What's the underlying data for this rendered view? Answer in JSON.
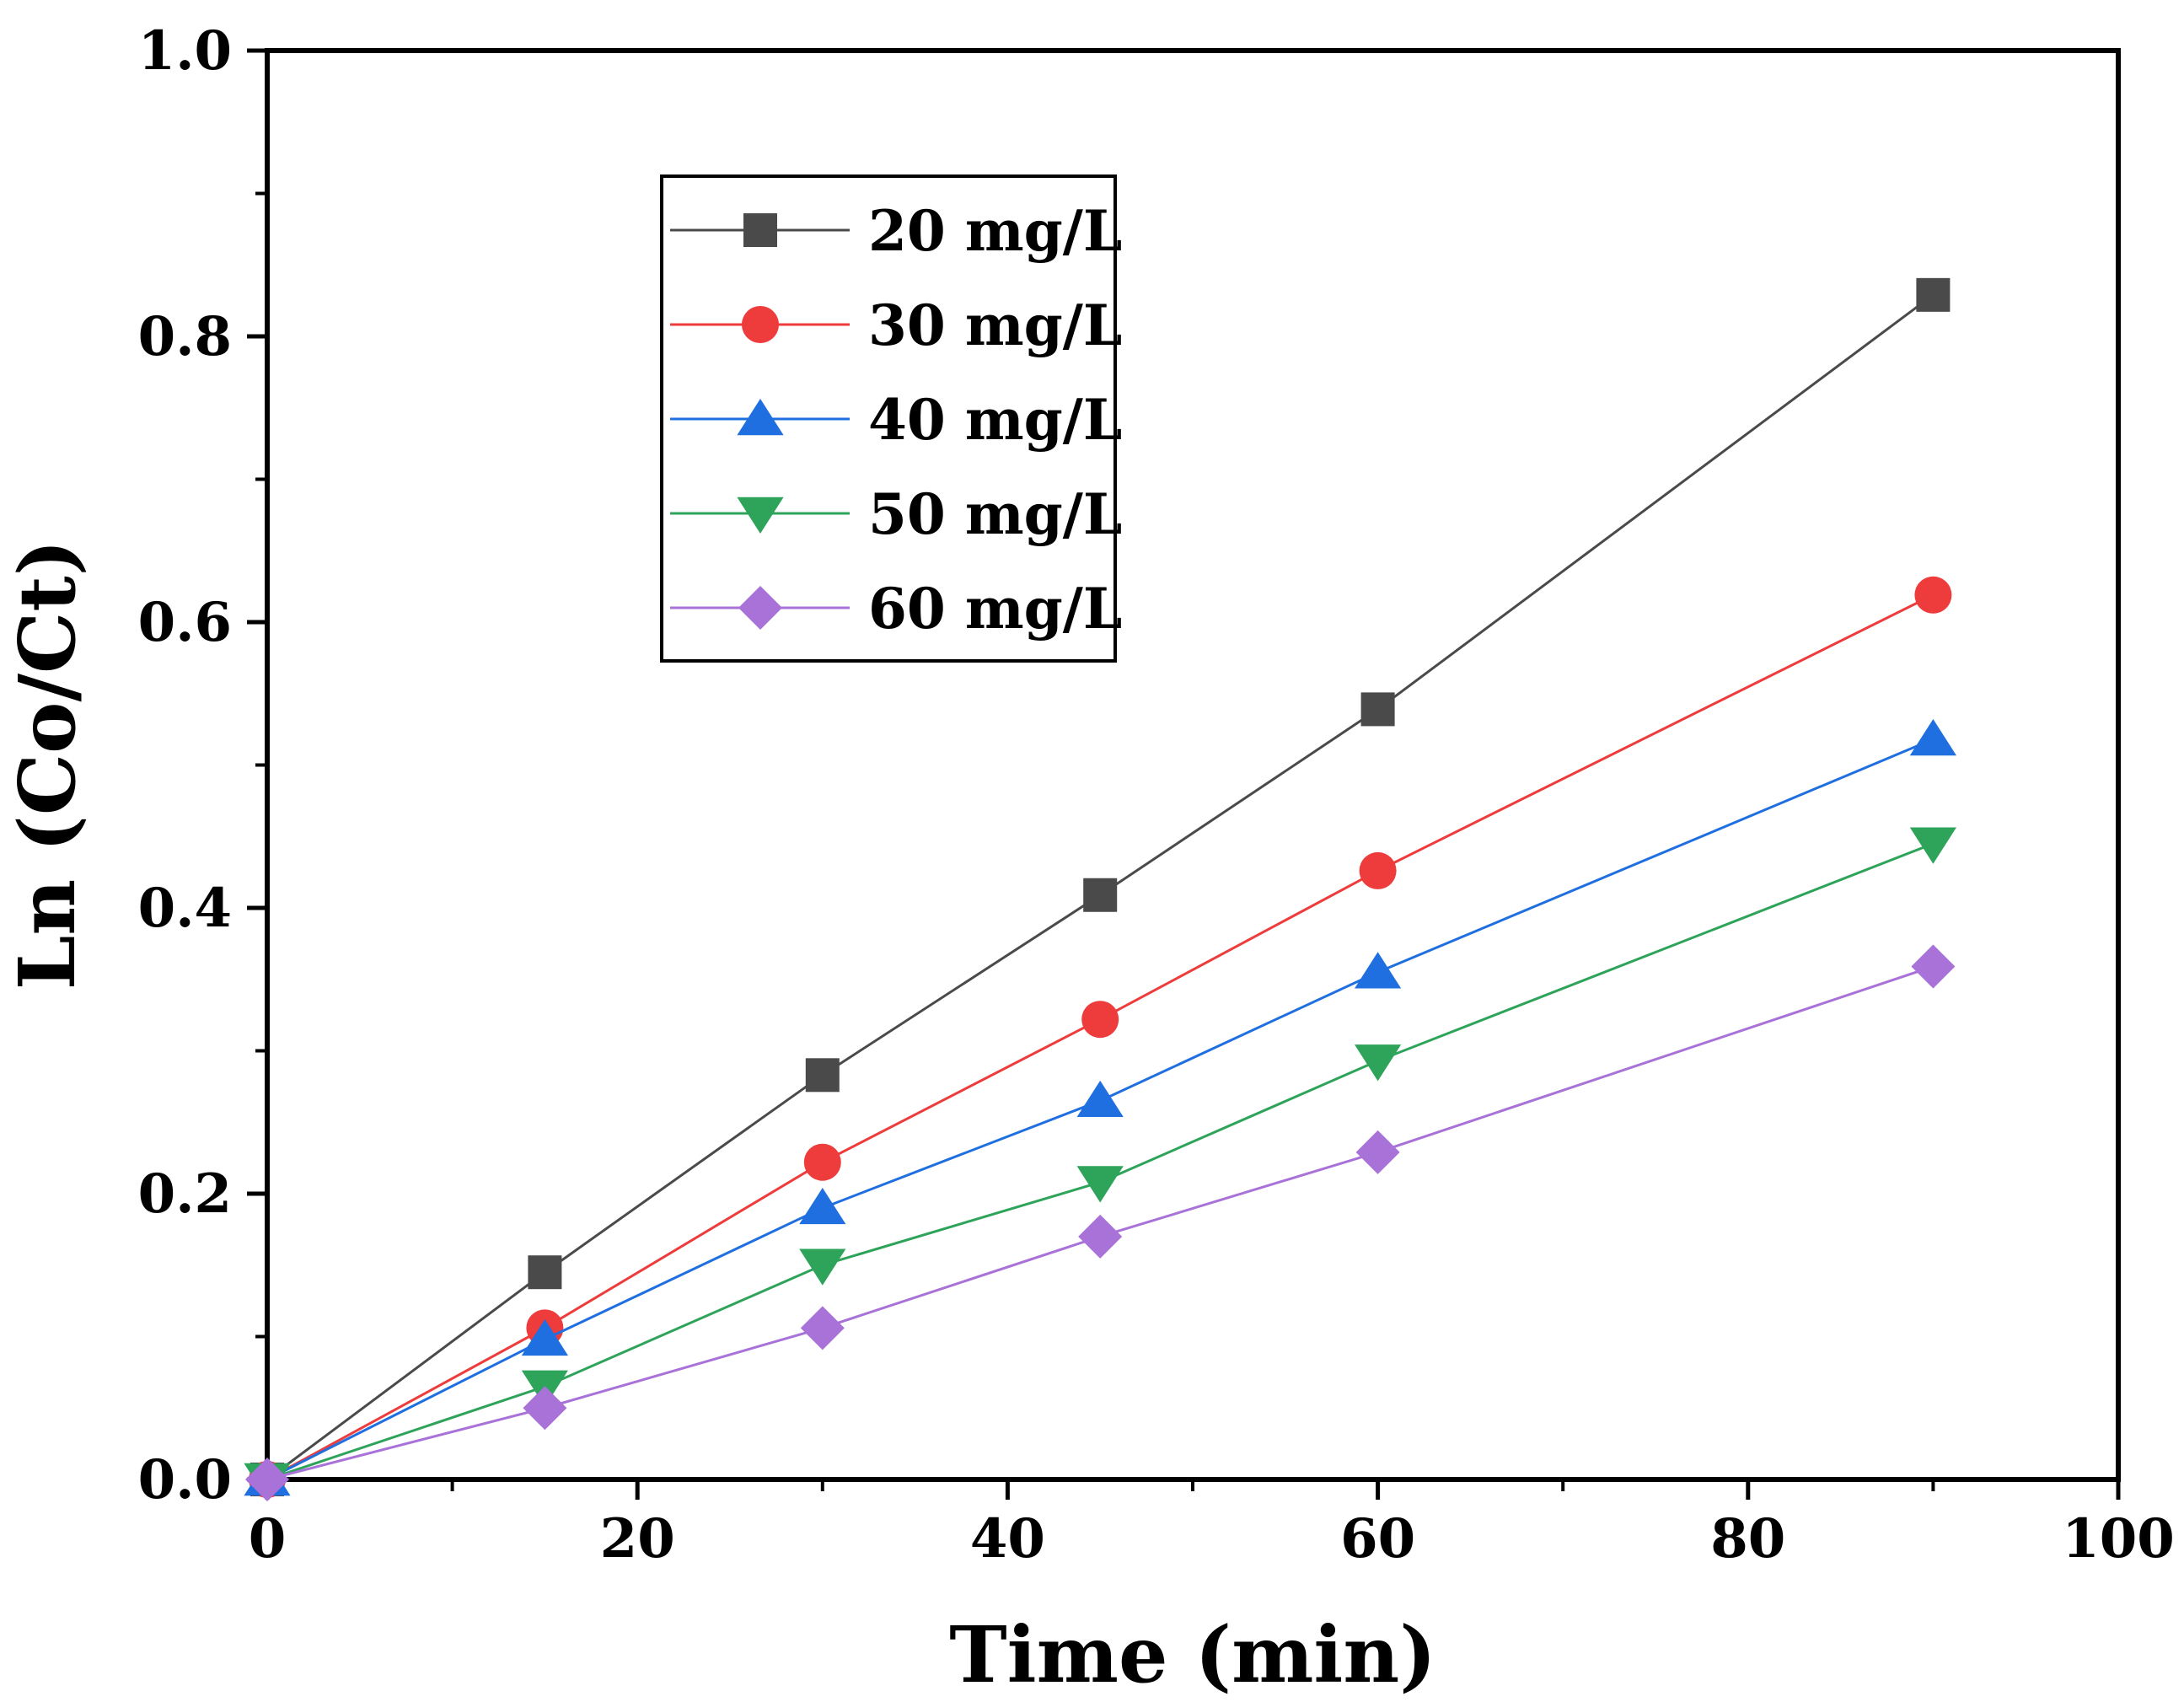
{
  "chart_data": {
    "type": "line",
    "title": "",
    "xlabel": "Time (min)",
    "ylabel": "Ln (Co/Ct)",
    "xlim": [
      0,
      100
    ],
    "ylim": [
      0,
      1.0
    ],
    "xticks": [
      0,
      20,
      40,
      60,
      80,
      100
    ],
    "xtick_labels": [
      "0",
      "20",
      "40",
      "60",
      "80",
      "100"
    ],
    "yticks": [
      0,
      0.2,
      0.4,
      0.6,
      0.8,
      1.0
    ],
    "ytick_labels": [
      "0.0",
      "0.2",
      "0.4",
      "0.6",
      "0.8",
      "1.0"
    ],
    "grid": false,
    "legend_position": "top-left",
    "x": [
      0,
      15,
      30,
      45,
      60,
      90
    ],
    "series": [
      {
        "name": "20 mg/L",
        "marker": "square",
        "color": "#4a4a4a",
        "values": [
          0,
          0.145,
          0.283,
          0.409,
          0.539,
          0.829
        ]
      },
      {
        "name": "30 mg/L",
        "marker": "circle",
        "color": "#ee3b3b",
        "values": [
          0,
          0.106,
          0.222,
          0.322,
          0.426,
          0.619
        ]
      },
      {
        "name": "40 mg/L",
        "marker": "triangle-up",
        "color": "#1f6fe0",
        "values": [
          0,
          0.098,
          0.19,
          0.265,
          0.355,
          0.518
        ]
      },
      {
        "name": "50 mg/L",
        "marker": "triangle-down",
        "color": "#2ea35a",
        "values": [
          0,
          0.065,
          0.15,
          0.208,
          0.293,
          0.445
        ]
      },
      {
        "name": "60 mg/L",
        "marker": "diamond",
        "color": "#a872d8",
        "values": [
          0,
          0.05,
          0.106,
          0.17,
          0.229,
          0.359
        ]
      }
    ]
  }
}
